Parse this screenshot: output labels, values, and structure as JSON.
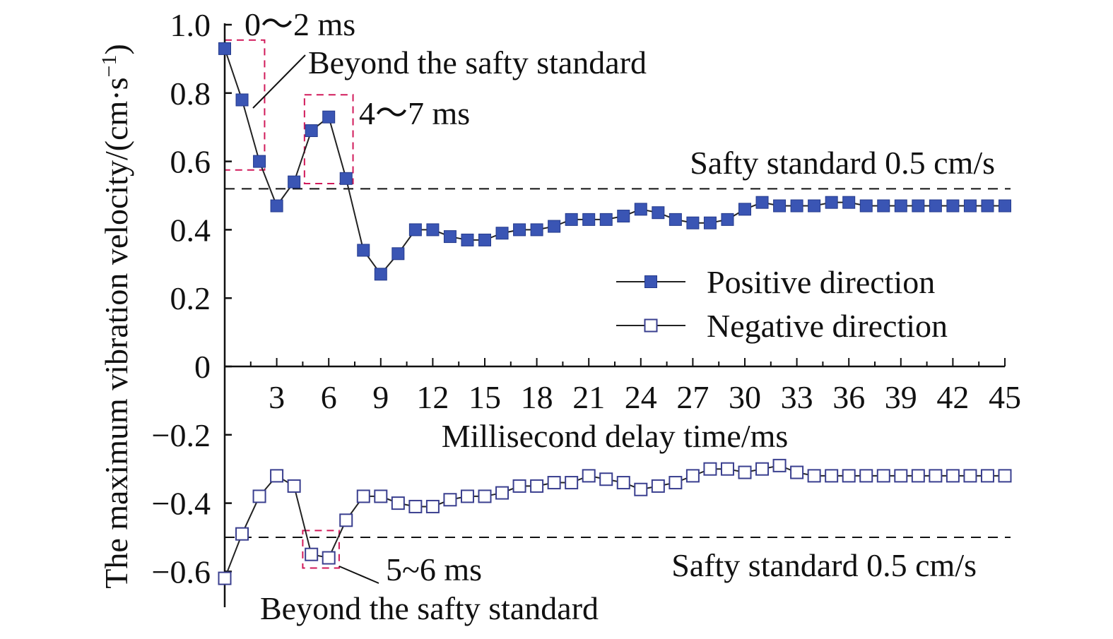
{
  "chart_data": {
    "type": "line",
    "x": [
      0,
      1,
      2,
      3,
      4,
      5,
      6,
      7,
      8,
      9,
      10,
      11,
      12,
      13,
      14,
      15,
      16,
      17,
      18,
      19,
      20,
      21,
      22,
      23,
      24,
      25,
      26,
      27,
      28,
      29,
      30,
      31,
      32,
      33,
      34,
      35,
      36,
      37,
      38,
      39,
      40,
      41,
      42,
      43,
      44,
      45
    ],
    "series": [
      {
        "name": "Positive direction",
        "marker": "filled-square",
        "color": "#3a55b4",
        "values": [
          0.93,
          0.78,
          0.6,
          0.47,
          0.54,
          0.69,
          0.73,
          0.55,
          0.34,
          0.27,
          0.33,
          0.4,
          0.4,
          0.38,
          0.37,
          0.37,
          0.39,
          0.4,
          0.4,
          0.41,
          0.43,
          0.43,
          0.43,
          0.44,
          0.46,
          0.45,
          0.43,
          0.42,
          0.42,
          0.43,
          0.46,
          0.48,
          0.47,
          0.47,
          0.47,
          0.48,
          0.48,
          0.47,
          0.47,
          0.47,
          0.47,
          0.47,
          0.47,
          0.47,
          0.47,
          0.47
        ]
      },
      {
        "name": "Negative direction",
        "marker": "open-square",
        "color": "#3a3f8f",
        "values": [
          -0.62,
          -0.49,
          -0.38,
          -0.32,
          -0.35,
          -0.55,
          -0.56,
          -0.45,
          -0.38,
          -0.38,
          -0.4,
          -0.41,
          -0.41,
          -0.39,
          -0.38,
          -0.38,
          -0.37,
          -0.35,
          -0.35,
          -0.34,
          -0.34,
          -0.32,
          -0.33,
          -0.34,
          -0.36,
          -0.35,
          -0.34,
          -0.32,
          -0.3,
          -0.3,
          -0.31,
          -0.3,
          -0.29,
          -0.31,
          -0.32,
          -0.32,
          -0.32,
          -0.32,
          -0.32,
          -0.32,
          -0.32,
          -0.32,
          -0.32,
          -0.32,
          -0.32,
          -0.32
        ]
      }
    ],
    "xlabel": "Millisecond delay time/ms",
    "ylabel": "The maximum vibration velocity/(cm·s",
    "ylabel_sup": "−1",
    "ylabel_close": ")",
    "xlim": [
      0,
      45
    ],
    "ylim": [
      -0.7,
      1.0
    ],
    "x_ticks": [
      3,
      6,
      9,
      12,
      15,
      18,
      21,
      24,
      27,
      30,
      33,
      36,
      39,
      42,
      45
    ],
    "x_tick_labels": [
      "3",
      "6",
      "9",
      "12",
      "15",
      "18",
      "21",
      "24",
      "27",
      "30",
      "33",
      "36",
      "39",
      "42",
      "45"
    ],
    "y_ticks": [
      -0.6,
      -0.4,
      -0.2,
      0,
      0.2,
      0.4,
      0.6,
      0.8,
      1.0
    ],
    "y_tick_labels": [
      "−0.6",
      "−0.4",
      "−0.2",
      "0",
      "0.2",
      "0.4",
      "0.6",
      "0.8",
      "1.0"
    ],
    "grid": false,
    "legend_position": "right",
    "reference_lines": [
      {
        "y": 0.52,
        "label": "Safty standard 0.5 cm/s"
      },
      {
        "y": -0.5,
        "label": "Safty standard 0.5 cm/s"
      }
    ],
    "highlight_boxes": [
      {
        "x0": 0,
        "x1": 2.3,
        "y0": 0.575,
        "y1": 0.955,
        "label": "0～2 ms"
      },
      {
        "x0": 4.6,
        "x1": 7.4,
        "y0": 0.535,
        "y1": 0.795,
        "label": "4～7 ms"
      },
      {
        "x0": 4.5,
        "x1": 6.6,
        "y0": -0.59,
        "y1": -0.48,
        "label": "5~6 ms"
      }
    ],
    "annotations": {
      "beyond_top": "Beyond the safty standard",
      "beyond_bottom": "Beyond the safty standard"
    },
    "accent_box_color": "#d11a5a",
    "axis_color": "#111111"
  }
}
